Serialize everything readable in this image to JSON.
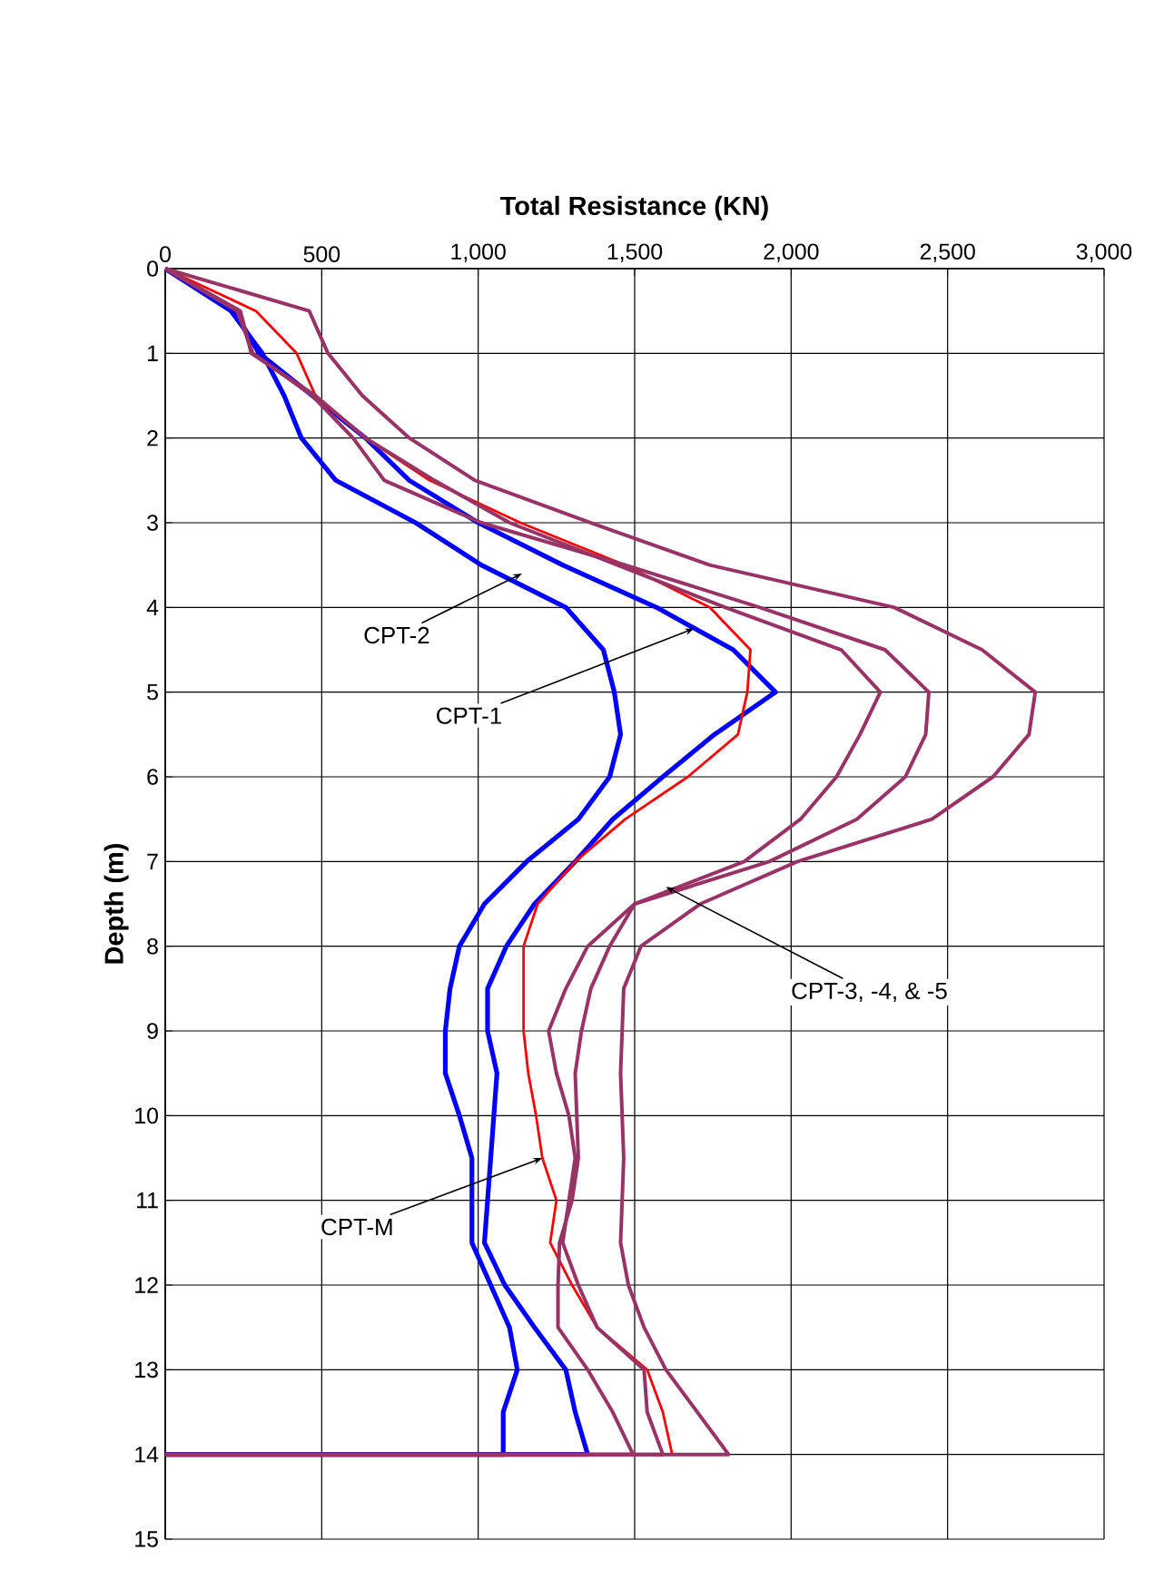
{
  "chart_data": {
    "type": "line",
    "xlabel": "Total Resistance  (KN)",
    "ylabel": "Depth  (m)",
    "xlim": [
      0,
      3000
    ],
    "xticks": [
      0,
      500,
      {
        "value": 1000,
        "label": "1,000"
      },
      {
        "value": 1500,
        "label": "1,500"
      },
      {
        "value": 2000,
        "label": "2,000"
      },
      {
        "value": 2500,
        "label": "2,500"
      },
      {
        "value": 3000,
        "label": "3,000"
      }
    ],
    "ylim": [
      15,
      0
    ],
    "yticks": [
      0,
      1,
      2,
      3,
      4,
      5,
      6,
      7,
      8,
      9,
      10,
      11,
      12,
      13,
      14,
      15
    ],
    "grid": true,
    "marker": "none",
    "line_style": "solid",
    "series": [
      {
        "color": "#0000ff",
        "x": [
          0,
          210,
          310,
          380,
          435,
          545,
          800,
          1010,
          1280,
          1400,
          1435,
          1455,
          1420,
          1320,
          1155,
          1020,
          940,
          910,
          895,
          895,
          940,
          980,
          980,
          1040,
          1100,
          1125,
          1080,
          1080,
          0
        ],
        "values": [
          0,
          0.5,
          1,
          1.5,
          2,
          2.5,
          3,
          3.5,
          4,
          4.5,
          5,
          5.5,
          6,
          6.5,
          7,
          7.5,
          8,
          8.5,
          9,
          9.5,
          10,
          10.5,
          11.5,
          12,
          12.5,
          13,
          13.5,
          14,
          14
        ]
      },
      {
        "color": "#0000ff",
        "x": [
          0,
          220,
          300,
          470,
          640,
          780,
          1000,
          1270,
          1570,
          1815,
          1950,
          1755,
          1590,
          1430,
          1310,
          1180,
          1090,
          1030,
          1030,
          1060,
          1050,
          1040,
          1030,
          1020,
          1085,
          1180,
          1280,
          1310,
          1350,
          0
        ],
        "values": [
          0,
          0.5,
          1,
          1.5,
          2,
          2.5,
          3,
          3.5,
          4,
          4.5,
          5,
          5.5,
          6,
          6.5,
          7,
          7.5,
          8,
          8.5,
          9,
          9.5,
          10,
          10.5,
          11,
          11.5,
          12,
          12.5,
          13,
          13.5,
          14,
          14
        ]
      },
      {
        "color": "#ff0000",
        "x": [
          0,
          290,
          420,
          480,
          640,
          845,
          1135,
          1470,
          1740,
          1870,
          1860,
          1830,
          1670,
          1470,
          1310,
          1190,
          1145,
          1145,
          1160,
          1185,
          1205,
          1250,
          1230,
          1300,
          1380,
          1540,
          1590,
          1620,
          0
        ],
        "values": [
          0,
          0.5,
          1,
          1.5,
          2,
          2.5,
          3,
          3.5,
          4,
          4.5,
          5,
          5.5,
          6,
          6.5,
          7,
          7.5,
          8,
          9,
          9.5,
          10,
          10.5,
          11,
          11.5,
          12,
          12.5,
          13,
          13.5,
          14,
          14
        ]
      },
      {
        "color": "#993366",
        "x": [
          0,
          240,
          275,
          480,
          640,
          860,
          1100,
          1445,
          1790,
          2160,
          2285,
          2220,
          2145,
          2030,
          1850,
          1500,
          1420,
          1360,
          1330,
          1310,
          1315,
          1320,
          1300,
          1260,
          1255,
          1255,
          1350,
          1430,
          1495,
          0
        ],
        "values": [
          0,
          0.5,
          1,
          1.5,
          2,
          2.5,
          3,
          3.5,
          4,
          4.5,
          5,
          5.5,
          6,
          6.5,
          7,
          7.5,
          8,
          8.5,
          9,
          9.5,
          10,
          10.5,
          11,
          11.5,
          12,
          12.5,
          13,
          13.5,
          14,
          14
        ]
      },
      {
        "color": "#993366",
        "x": [
          0,
          230,
          280,
          470,
          600,
          700,
          1010,
          1470,
          1900,
          2300,
          2440,
          2430,
          2365,
          2210,
          1930,
          1500,
          1350,
          1280,
          1225,
          1250,
          1290,
          1310,
          1270,
          1320,
          1380,
          1530,
          1540,
          1590,
          0
        ],
        "values": [
          0,
          0.5,
          1,
          1.5,
          2,
          2.5,
          3,
          3.5,
          4,
          4.5,
          5,
          5.5,
          6,
          6.5,
          7,
          7.5,
          8,
          8.5,
          9,
          9.5,
          10,
          10.5,
          11.5,
          12,
          12.5,
          13,
          13.5,
          14,
          14
        ]
      },
      {
        "color": "#993366",
        "x": [
          0,
          460,
          520,
          630,
          780,
          990,
          1360,
          1740,
          2330,
          2610,
          2780,
          2760,
          2645,
          2450,
          2020,
          1710,
          1520,
          1465,
          1460,
          1455,
          1460,
          1465,
          1460,
          1455,
          1480,
          1530,
          1600,
          1700,
          1800,
          0
        ],
        "values": [
          0,
          0.5,
          1,
          1.5,
          2,
          2.5,
          3,
          3.5,
          4,
          4.5,
          5,
          5.5,
          6,
          6.5,
          7,
          7.5,
          8,
          8.5,
          9,
          9.5,
          10,
          10.5,
          11,
          11.5,
          12,
          12.5,
          13,
          13.5,
          14,
          14
        ]
      }
    ],
    "annotations": [
      {
        "text": "CPT-2",
        "x": 1140,
        "y": 3.6
      },
      {
        "text": "CPT-1",
        "x": 1690,
        "y": 4.25
      },
      {
        "text": "CPT-3, -4,  & -5",
        "x": 1600,
        "y": 7.3
      },
      {
        "text": "CPT-M",
        "x": 1205,
        "y": 10.5
      }
    ]
  }
}
